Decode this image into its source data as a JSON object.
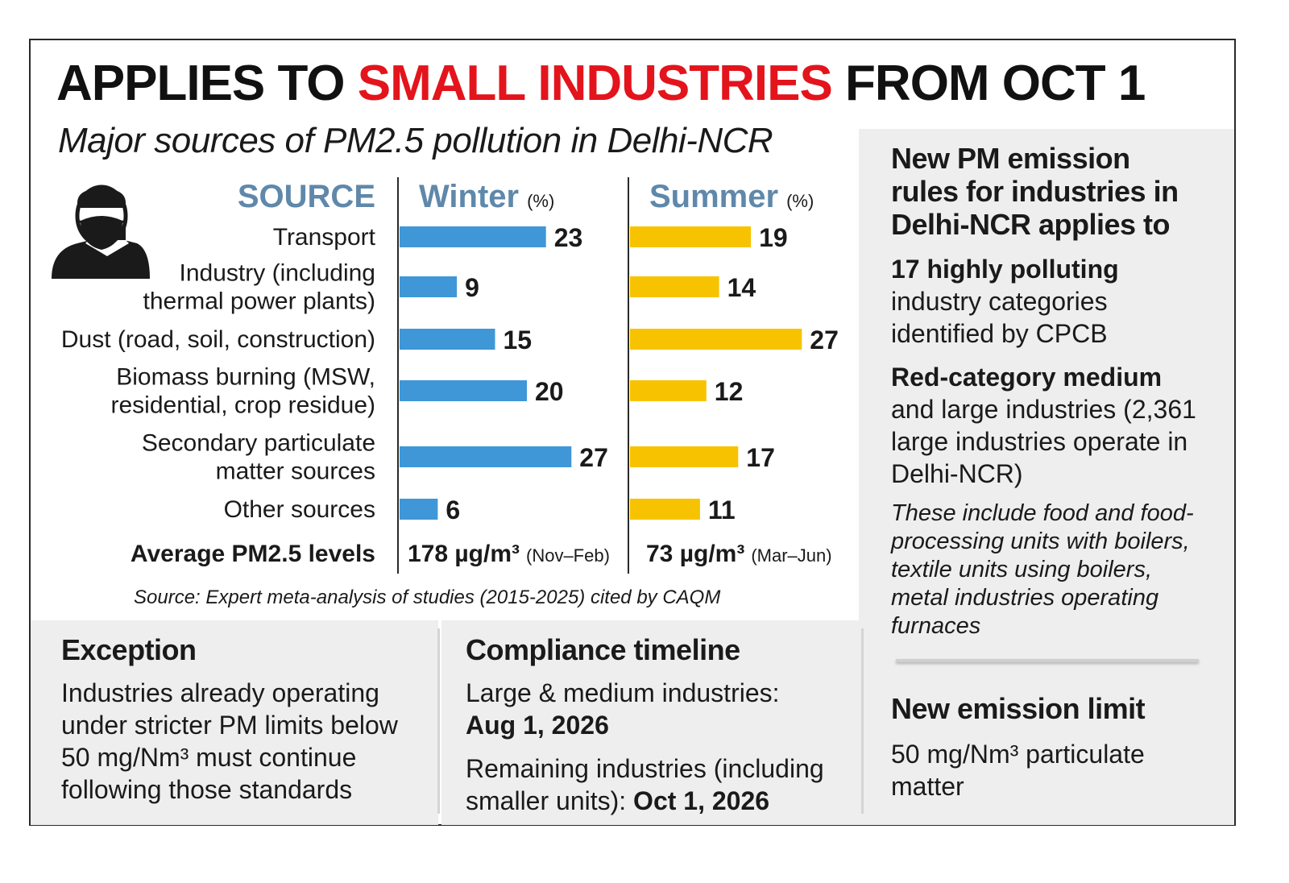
{
  "headline": {
    "part1": "APPLIES TO ",
    "part2": "SMALL INDUSTRIES",
    "part3": " FROM OCT 1"
  },
  "subtitle": "Major sources of PM2.5 pollution in Delhi-NCR",
  "colors": {
    "red": "#e3141c",
    "winter_bar": "#3f97d8",
    "summer_bar": "#f7c300",
    "header_blue": "#5f88aa",
    "panel_gray": "#eeeeee"
  },
  "icons": {
    "person": "masked-person-icon"
  },
  "chart_data": {
    "type": "bar",
    "headers": {
      "source": "SOURCE",
      "winter": "Winter",
      "winter_unit": "(%)",
      "summer": "Summer",
      "summer_unit": "(%)"
    },
    "categories": [
      "Transport",
      "Industry (including thermal power plants)",
      "Dust (road, soil, construction)",
      "Biomass burning (MSW, residential, crop residue)",
      "Secondary particulate matter sources",
      "Other sources"
    ],
    "category_lines": [
      [
        "Transport"
      ],
      [
        "Industry (including",
        "thermal power plants)"
      ],
      [
        "Dust (road, soil, construction)"
      ],
      [
        "Biomass burning (MSW,",
        "residential, crop residue)"
      ],
      [
        "Secondary particulate",
        "matter sources"
      ],
      [
        "Other sources"
      ]
    ],
    "series": [
      {
        "name": "Winter",
        "values": [
          23,
          9,
          15,
          20,
          27,
          6
        ]
      },
      {
        "name": "Summer",
        "values": [
          19,
          14,
          27,
          12,
          17,
          11
        ]
      }
    ],
    "average": {
      "label": "Average  PM2.5 levels",
      "winter_value": "178 µg/m³",
      "winter_period": "(Nov–Feb)",
      "summer_value": "73 µg/m³",
      "summer_period": "(Mar–Jun)"
    }
  },
  "source_note": "Source: Expert meta-analysis of studies (2015-2025) cited by CAQM",
  "right_panel": {
    "title": "New PM emission rules for industries in Delhi-NCR applies to",
    "item1_bold": "17 highly polluting",
    "item1_text": "industry categories identified by CPCB",
    "item2_bold": "Red-category medium",
    "item2_text": "and large industries (2,361 large industries operate in Delhi-NCR)",
    "italic_note": "These include food and food-processing units with boilers, textile units using boilers, metal industries operating furnaces",
    "limit_title": "New emission limit",
    "limit_text": "50 mg/Nm³ particulate matter"
  },
  "exception": {
    "title": "Exception",
    "text": "Industries already operating under stricter PM limits below 50 mg/Nm³ must continue following those standards"
  },
  "compliance": {
    "title": "Compliance timeline",
    "line1": "Large & medium industries:",
    "date1": "Aug 1, 2026",
    "line2": "Remaining industries (including smaller units):",
    "date2": "Oct 1, 2026"
  }
}
